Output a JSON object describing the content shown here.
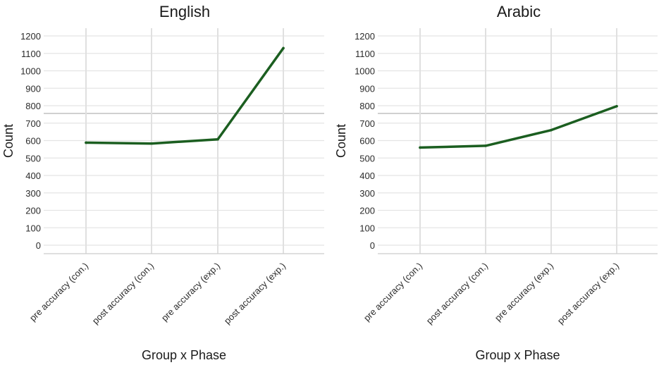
{
  "chart_data": [
    {
      "type": "line",
      "title": "English",
      "xlabel": "Group x Phase",
      "ylabel": "Count",
      "categories": [
        "pre accuracy (con.)",
        "post accuracy (con.)",
        "pre accuracy (exp.)",
        "post accuracy (exp.)"
      ],
      "values": [
        588,
        583,
        607,
        1130
      ],
      "ylim": [
        0,
        1200
      ],
      "yticks": [
        0,
        100,
        200,
        300,
        400,
        500,
        600,
        700,
        800,
        900,
        1000,
        1100,
        1200
      ],
      "grid": true,
      "line_color": "#1b5e20"
    },
    {
      "type": "line",
      "title": "Arabic",
      "xlabel": "Group x Phase",
      "ylabel": "Count",
      "categories": [
        "pre accuracy (con.)",
        "post accuracy (con.)",
        "pre accuracy (exp.)",
        "post accuracy (exp.)"
      ],
      "values": [
        560,
        570,
        660,
        797
      ],
      "ylim": [
        0,
        1200
      ],
      "yticks": [
        0,
        100,
        200,
        300,
        400,
        500,
        600,
        700,
        800,
        900,
        1000,
        1100,
        1200
      ],
      "grid": true,
      "line_color": "#1b5e20"
    }
  ]
}
